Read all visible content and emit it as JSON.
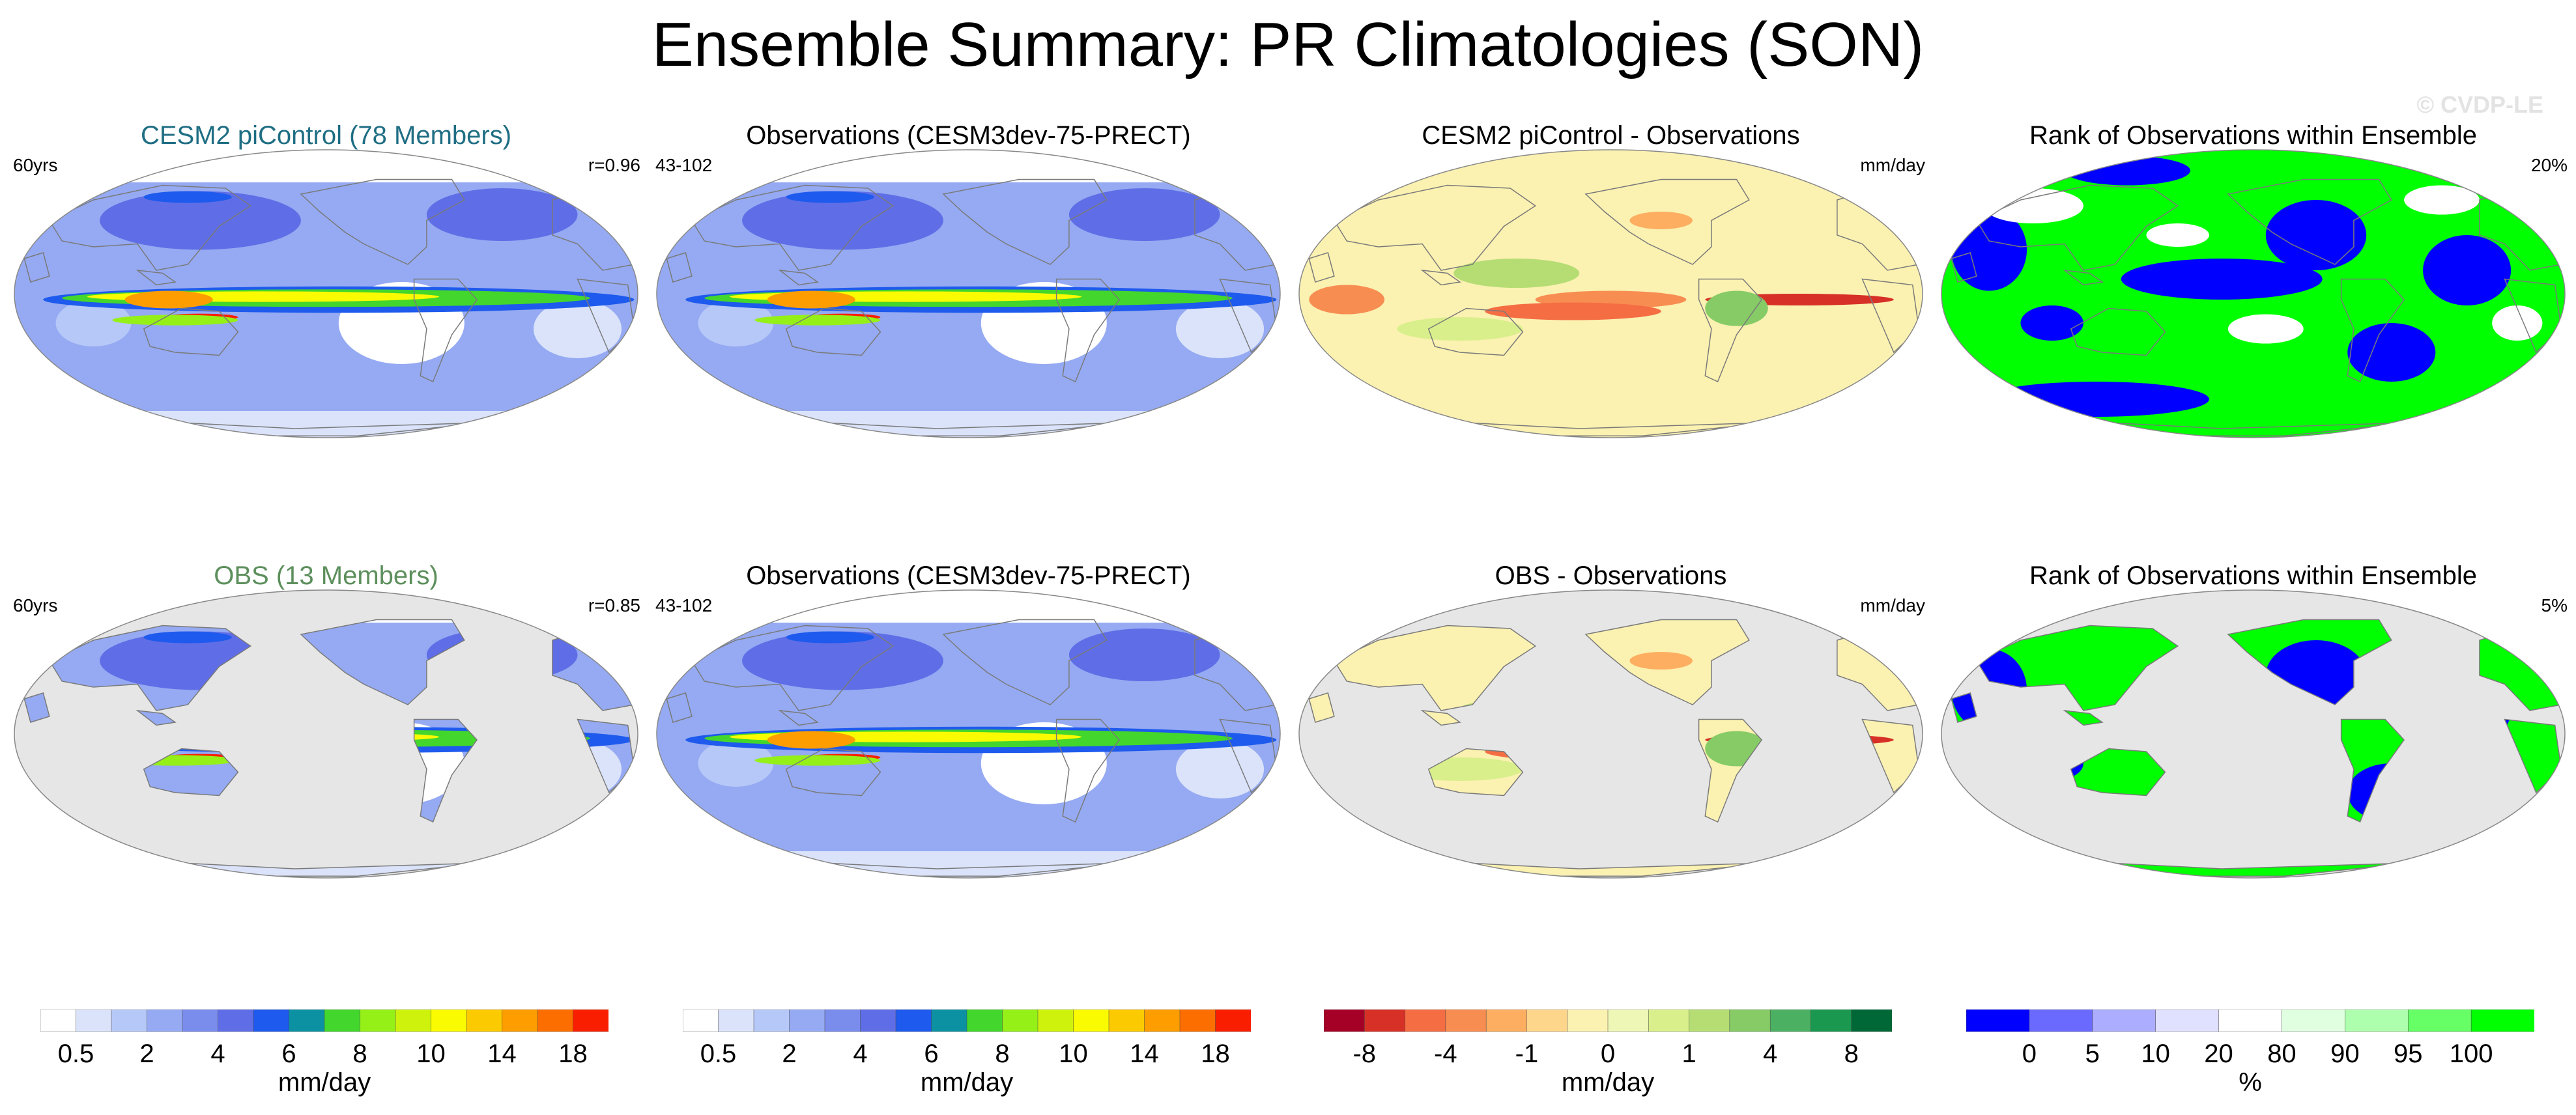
{
  "title": "Ensemble Summary: PR Climatologies (SON)",
  "watermark": "© CVDP-LE",
  "colors": {
    "ocean_gray": "#e6e6e6",
    "coast": "#7a7a7a",
    "title_teal": "#1f6e84",
    "title_green": "#5c8f5c"
  },
  "rows": [
    {
      "panels": [
        {
          "kind": "pr",
          "title": "CESM2 piControl (78 Members)",
          "title_color": "#1f6e84",
          "left": "60yrs",
          "right": "r=0.96",
          "masked": false
        },
        {
          "kind": "pr",
          "title": "Observations (CESM3dev-75-PRECT)",
          "title_color": "#000000",
          "left": "43-102",
          "right": "",
          "masked": false
        },
        {
          "kind": "diff",
          "title": "CESM2 piControl - Observations",
          "title_color": "#000000",
          "left": "",
          "right": "mm/day",
          "masked": false
        },
        {
          "kind": "rank",
          "title": "Rank of Observations within Ensemble",
          "title_color": "#000000",
          "left": "",
          "right": "20%",
          "masked": false
        }
      ]
    },
    {
      "panels": [
        {
          "kind": "pr",
          "title": "OBS (13 Members)",
          "title_color": "#5c8f5c",
          "left": "60yrs",
          "right": "r=0.85",
          "masked": true
        },
        {
          "kind": "pr",
          "title": "Observations (CESM3dev-75-PRECT)",
          "title_color": "#000000",
          "left": "43-102",
          "right": "",
          "masked": false
        },
        {
          "kind": "diff",
          "title": "OBS - Observations",
          "title_color": "#000000",
          "left": "",
          "right": "mm/day",
          "masked": true
        },
        {
          "kind": "rank",
          "title": "Rank of Observations within Ensemble",
          "title_color": "#000000",
          "left": "",
          "right": "5%",
          "masked": true
        }
      ]
    }
  ],
  "chart_data": [
    {
      "type": "heatmap",
      "name": "pr_climatology_colorbar",
      "unit": "mm/day",
      "tick_labels": [
        "0.5",
        "2",
        "4",
        "6",
        "8",
        "10",
        "14",
        "18"
      ],
      "levels": [
        0.5,
        1,
        2,
        3,
        4,
        5,
        6,
        7,
        8,
        9,
        10,
        12,
        14,
        16,
        18
      ],
      "colors": [
        "#ffffff",
        "#dae3fa",
        "#b6c8f7",
        "#95aaf2",
        "#7a8cec",
        "#5f6ee6",
        "#1e5aed",
        "#0c91a3",
        "#43d62c",
        "#95f018",
        "#cff20c",
        "#fafa00",
        "#fcca00",
        "#fd9d00",
        "#fd6e00",
        "#fa1e00"
      ]
    },
    {
      "type": "heatmap",
      "name": "pr_difference_colorbar",
      "unit": "mm/day",
      "tick_labels": [
        "-8",
        "-4",
        "-1",
        "0",
        "1",
        "4",
        "8"
      ],
      "levels": [
        -8,
        -6,
        -4,
        -2,
        -1,
        -0.5,
        0,
        0.5,
        1,
        2,
        4,
        6,
        8
      ],
      "colors": [
        "#a50026",
        "#d73027",
        "#f46d43",
        "#f88d52",
        "#fdae61",
        "#fdd58b",
        "#fbf1b1",
        "#eef7b5",
        "#d9ef8b",
        "#b5dd74",
        "#86cb66",
        "#4cb062",
        "#1a9850",
        "#006837"
      ]
    },
    {
      "type": "heatmap",
      "name": "rank_colorbar",
      "unit": "%",
      "tick_labels": [
        "0",
        "5",
        "10",
        "20",
        "80",
        "90",
        "95",
        "100"
      ],
      "levels": [
        0,
        5,
        10,
        20,
        80,
        90,
        95,
        100
      ],
      "colors": [
        "#0000ff",
        "#6a6aff",
        "#adadff",
        "#e0e0ff",
        "#ffffff",
        "#e0ffe0",
        "#adffad",
        "#66ff66",
        "#00ff00"
      ]
    },
    {
      "type": "heatmap",
      "name": "map_fields",
      "description_fields": "approximate season-mean precipitation patterns on Robinson projection",
      "pr_rank_coverage_row1": "20%",
      "pr_rank_coverage_row2": "5%",
      "pattern_correlation_row1": 0.96,
      "pattern_correlation_row2": 0.85
    }
  ]
}
